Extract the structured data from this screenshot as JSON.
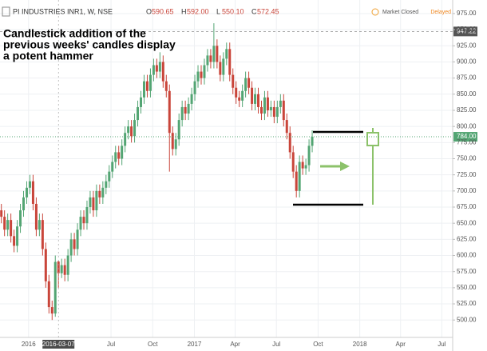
{
  "chart_data": {
    "type": "candlestick",
    "symbol": "PI INDUSTRIES INR1, W, NSE",
    "ohlc": [
      {
        "key": "O",
        "value": 590.65
      },
      {
        "key": "H",
        "value": 592,
        "label": "592.00"
      },
      {
        "key": "L",
        "value": 550.1,
        "label": "550.10"
      },
      {
        "key": "C",
        "value": 572.45
      }
    ],
    "status": "Market Closed",
    "feed": "Delayed",
    "annotation": [
      "Candlestick addition of the",
      "previous weeks' candles display",
      "a potent hammer"
    ],
    "crosshair_date": "2016-03-07",
    "up_color": "#53a573",
    "down_color": "#c9453a",
    "x": [
      "2015-11-02",
      "2015-11-09",
      "2015-11-16",
      "2015-11-23",
      "2015-11-30",
      "2015-12-07",
      "2015-12-14",
      "2015-12-21",
      "2015-12-28",
      "2016-01-04",
      "2016-01-11",
      "2016-01-18",
      "2016-01-25",
      "2016-02-01",
      "2016-02-08",
      "2016-02-15",
      "2016-02-22",
      "2016-02-29",
      "2016-03-07",
      "2016-03-14",
      "2016-03-21",
      "2016-03-28",
      "2016-04-04",
      "2016-04-11",
      "2016-04-18",
      "2016-04-25",
      "2016-05-02",
      "2016-05-09",
      "2016-05-16",
      "2016-05-23",
      "2016-05-30",
      "2016-06-06",
      "2016-06-13",
      "2016-06-20",
      "2016-06-27",
      "2016-07-04",
      "2016-07-11",
      "2016-07-18",
      "2016-07-25",
      "2016-08-01",
      "2016-08-08",
      "2016-08-15",
      "2016-08-22",
      "2016-08-29",
      "2016-09-05",
      "2016-09-12",
      "2016-09-19",
      "2016-09-26",
      "2016-10-03",
      "2016-10-10",
      "2016-10-17",
      "2016-10-24",
      "2016-10-31",
      "2016-11-07",
      "2016-11-14",
      "2016-11-21",
      "2016-11-28",
      "2016-12-05",
      "2016-12-12",
      "2016-12-19",
      "2016-12-26",
      "2017-01-02",
      "2017-01-09",
      "2017-01-16",
      "2017-01-23",
      "2017-01-30",
      "2017-02-06",
      "2017-02-13",
      "2017-02-20",
      "2017-02-27",
      "2017-03-06",
      "2017-03-13",
      "2017-03-20",
      "2017-03-27",
      "2017-04-03",
      "2017-04-10",
      "2017-04-17",
      "2017-04-24",
      "2017-05-01",
      "2017-05-08",
      "2017-05-15",
      "2017-05-22",
      "2017-05-29",
      "2017-06-05",
      "2017-06-12",
      "2017-06-19",
      "2017-06-26",
      "2017-07-03",
      "2017-07-10",
      "2017-07-17",
      "2017-07-24",
      "2017-07-31",
      "2017-08-07",
      "2017-08-14",
      "2017-08-21",
      "2017-08-28",
      "2017-09-04",
      "2017-09-11",
      "2017-09-18"
    ],
    "open": [
      670,
      660,
      640,
      655,
      630,
      615,
      645,
      670,
      690,
      705,
      715,
      680,
      640,
      655,
      610,
      560,
      520,
      510,
      590.65,
      572.45,
      585,
      570,
      600,
      625,
      610,
      640,
      660,
      650,
      675,
      690,
      670,
      700,
      690,
      705,
      715,
      730,
      745,
      760,
      750,
      770,
      790,
      800,
      785,
      810,
      830,
      845,
      870,
      855,
      880,
      895,
      885,
      900,
      870,
      855,
      790,
      765,
      780,
      810,
      830,
      820,
      835,
      850,
      870,
      885,
      875,
      895,
      910,
      900,
      925,
      900,
      880,
      905,
      920,
      880,
      860,
      845,
      840,
      855,
      875,
      860,
      835,
      850,
      830,
      820,
      845,
      825,
      830,
      815,
      830,
      840,
      810,
      790,
      760,
      730,
      700,
      745,
      735,
      740,
      770
    ],
    "high": [
      680,
      670,
      665,
      665,
      640,
      655,
      680,
      700,
      715,
      725,
      725,
      690,
      665,
      665,
      620,
      570,
      530,
      600,
      592,
      595,
      595,
      610,
      635,
      635,
      650,
      670,
      670,
      685,
      700,
      700,
      710,
      710,
      715,
      725,
      740,
      755,
      770,
      770,
      780,
      800,
      810,
      810,
      820,
      840,
      855,
      880,
      880,
      890,
      905,
      905,
      915,
      910,
      880,
      865,
      800,
      790,
      820,
      840,
      840,
      845,
      860,
      880,
      895,
      895,
      905,
      920,
      920,
      960,
      935,
      910,
      915,
      930,
      930,
      890,
      870,
      855,
      865,
      885,
      885,
      870,
      860,
      860,
      840,
      855,
      855,
      840,
      840,
      840,
      850,
      850,
      820,
      800,
      770,
      740,
      755,
      755,
      750,
      780,
      794
    ],
    "low": [
      650,
      630,
      630,
      620,
      605,
      605,
      635,
      660,
      680,
      695,
      670,
      630,
      630,
      600,
      550,
      510,
      500,
      505,
      550.1,
      565,
      560,
      560,
      590,
      600,
      600,
      630,
      640,
      640,
      665,
      660,
      660,
      680,
      680,
      695,
      705,
      720,
      735,
      740,
      740,
      760,
      780,
      775,
      775,
      800,
      820,
      835,
      845,
      845,
      870,
      875,
      875,
      860,
      845,
      730,
      755,
      755,
      770,
      800,
      810,
      810,
      825,
      840,
      860,
      865,
      865,
      885,
      890,
      890,
      890,
      870,
      870,
      895,
      870,
      850,
      835,
      830,
      830,
      845,
      850,
      825,
      825,
      820,
      810,
      810,
      815,
      815,
      805,
      805,
      820,
      800,
      780,
      750,
      720,
      690,
      690,
      725,
      725,
      730,
      760
    ],
    "close": [
      660,
      640,
      655,
      630,
      615,
      645,
      670,
      690,
      705,
      715,
      680,
      640,
      655,
      610,
      560,
      520,
      510,
      590,
      572.45,
      585,
      570,
      600,
      625,
      610,
      640,
      660,
      650,
      675,
      690,
      670,
      700,
      690,
      705,
      715,
      730,
      745,
      760,
      750,
      770,
      790,
      800,
      785,
      810,
      830,
      845,
      870,
      855,
      880,
      895,
      885,
      900,
      870,
      855,
      790,
      765,
      780,
      810,
      830,
      820,
      835,
      850,
      870,
      885,
      875,
      895,
      910,
      900,
      925,
      900,
      880,
      905,
      920,
      880,
      860,
      845,
      840,
      855,
      875,
      860,
      835,
      850,
      830,
      820,
      845,
      825,
      830,
      815,
      830,
      840,
      810,
      790,
      760,
      730,
      700,
      745,
      735,
      740,
      770,
      784
    ],
    "xlim": [
      "2015-10-30",
      "2018-07-25"
    ],
    "xticks": [
      {
        "value": "2016-01-01",
        "label": "2016"
      },
      {
        "value": "2016-07-01",
        "label": "Jul"
      },
      {
        "value": "2016-10-01",
        "label": "Oct"
      },
      {
        "value": "2017-01-01",
        "label": "2017"
      },
      {
        "value": "2017-04-01",
        "label": "Apr"
      },
      {
        "value": "2017-07-01",
        "label": "Jul"
      },
      {
        "value": "2017-10-01",
        "label": "Oct"
      },
      {
        "value": "2018-01-01",
        "label": "2018"
      },
      {
        "value": "2018-04-01",
        "label": "Apr"
      },
      {
        "value": "2018-07-01",
        "label": "Jul"
      }
    ],
    "ylim": [
      473,
      996
    ],
    "yticks": [
      {
        "value": 500,
        "label": "500.00"
      },
      {
        "value": 525,
        "label": "525.00"
      },
      {
        "value": 550,
        "label": "550.00"
      },
      {
        "value": 575,
        "label": "575.00"
      },
      {
        "value": 600,
        "label": "600.00"
      },
      {
        "value": 625,
        "label": "625.00"
      },
      {
        "value": 650,
        "label": "650.00"
      },
      {
        "value": 675,
        "label": "675.00"
      },
      {
        "value": 700,
        "label": "700.00"
      },
      {
        "value": 725,
        "label": "725.00"
      },
      {
        "value": 750,
        "label": "750.00"
      },
      {
        "value": 775,
        "label": "775.00"
      },
      {
        "value": 800,
        "label": "800.00"
      },
      {
        "value": 825,
        "label": "825.00"
      },
      {
        "value": 850,
        "label": "850.00"
      },
      {
        "value": 875,
        "label": "875.00"
      },
      {
        "value": 900,
        "label": "900.00"
      },
      {
        "value": 925,
        "label": "925.00"
      },
      {
        "value": 950,
        "label": "950.00"
      },
      {
        "value": 975,
        "label": "975.00"
      }
    ],
    "last_price": {
      "value": 784,
      "label": "784.00"
    },
    "marker_price": 947.22,
    "grid": true
  }
}
